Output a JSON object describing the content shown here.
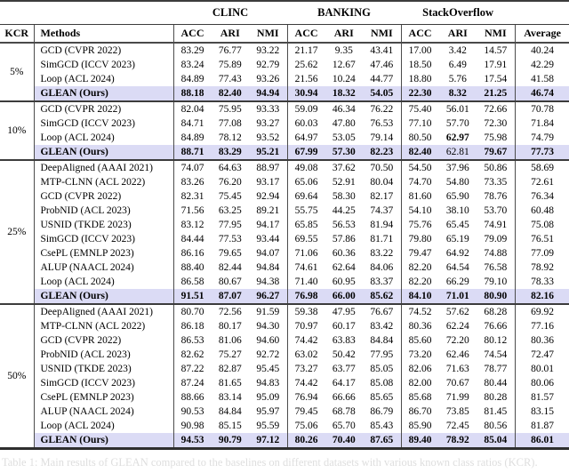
{
  "table": {
    "group_headers": [
      {
        "label": "CLINC"
      },
      {
        "label": "BANKING"
      },
      {
        "label": "StackOverflow"
      }
    ],
    "column_headers": {
      "kcr": "KCR",
      "methods": "Methods",
      "metrics": [
        "ACC",
        "ARI",
        "NMI",
        "ACC",
        "ARI",
        "NMI",
        "ACC",
        "ARI",
        "NMI"
      ],
      "average": "Average"
    },
    "highlight_color": "#dbdbf5",
    "blocks": [
      {
        "kcr": "5%",
        "rows": [
          {
            "method": "GCD (CVPR 2022)",
            "values": [
              "83.29",
              "76.77",
              "93.22",
              "21.17",
              "9.35",
              "43.41",
              "17.00",
              "3.42",
              "14.57",
              "40.24"
            ]
          },
          {
            "method": "SimGCD (ICCV 2023)",
            "values": [
              "83.24",
              "75.89",
              "92.79",
              "25.62",
              "12.67",
              "47.46",
              "18.50",
              "6.49",
              "17.91",
              "42.29"
            ]
          },
          {
            "method": "Loop (ACL 2024)",
            "values": [
              "84.89",
              "77.43",
              "93.26",
              "21.56",
              "10.24",
              "44.77",
              "18.80",
              "5.76",
              "17.54",
              "41.58"
            ]
          },
          {
            "method": "GLEAN (Ours)",
            "values": [
              "88.18",
              "82.40",
              "94.94",
              "30.94",
              "18.32",
              "54.05",
              "22.30",
              "8.32",
              "21.25",
              "46.74"
            ],
            "bold": true,
            "highlight": true
          }
        ]
      },
      {
        "kcr": "10%",
        "rows": [
          {
            "method": "GCD (CVPR 2022)",
            "values": [
              "82.04",
              "75.95",
              "93.33",
              "59.09",
              "46.34",
              "76.22",
              "75.40",
              "56.01",
              "72.66",
              "70.78"
            ]
          },
          {
            "method": "SimGCD (ICCV 2023)",
            "values": [
              "84.71",
              "77.08",
              "93.27",
              "60.03",
              "47.80",
              "76.53",
              "77.10",
              "57.70",
              "72.30",
              "71.84"
            ]
          },
          {
            "method": "Loop (ACL 2024)",
            "values": [
              "84.89",
              "78.12",
              "93.52",
              "64.97",
              "53.05",
              "79.14",
              "80.50",
              "62.97",
              "75.98",
              "74.79"
            ],
            "bold_cells": [
              7
            ]
          },
          {
            "method": "GLEAN (Ours)",
            "values": [
              "88.71",
              "83.29",
              "95.21",
              "67.99",
              "57.30",
              "82.23",
              "82.40",
              "62.81",
              "79.67",
              "77.73"
            ],
            "bold": true,
            "highlight": true,
            "regular_cells": [
              7
            ]
          }
        ]
      },
      {
        "kcr": "25%",
        "rows": [
          {
            "method": "DeepAligned (AAAI 2021)",
            "values": [
              "74.07",
              "64.63",
              "88.97",
              "49.08",
              "37.62",
              "70.50",
              "54.50",
              "37.96",
              "50.86",
              "58.69"
            ]
          },
          {
            "method": "MTP-CLNN (ACL 2022)",
            "values": [
              "83.26",
              "76.20",
              "93.17",
              "65.06",
              "52.91",
              "80.04",
              "74.70",
              "54.80",
              "73.35",
              "72.61"
            ]
          },
          {
            "method": "GCD (CVPR 2022)",
            "values": [
              "82.31",
              "75.45",
              "92.94",
              "69.64",
              "58.30",
              "82.17",
              "81.60",
              "65.90",
              "78.76",
              "76.34"
            ]
          },
          {
            "method": "ProbNID (ACL 2023)",
            "values": [
              "71.56",
              "63.25",
              "89.21",
              "55.75",
              "44.25",
              "74.37",
              "54.10",
              "38.10",
              "53.70",
              "60.48"
            ]
          },
          {
            "method": "USNID (TKDE 2023)",
            "values": [
              "83.12",
              "77.95",
              "94.17",
              "65.85",
              "56.53",
              "81.94",
              "75.76",
              "65.45",
              "74.91",
              "75.08"
            ]
          },
          {
            "method": "SimGCD (ICCV 2023)",
            "values": [
              "84.44",
              "77.53",
              "93.44",
              "69.55",
              "57.86",
              "81.71",
              "79.80",
              "65.19",
              "79.09",
              "76.51"
            ]
          },
          {
            "method": "CsePL (EMNLP 2023)",
            "values": [
              "86.16",
              "79.65",
              "94.07",
              "71.06",
              "60.36",
              "83.22",
              "79.47",
              "64.92",
              "74.88",
              "77.09"
            ]
          },
          {
            "method": "ALUP (NAACL 2024)",
            "values": [
              "88.40",
              "82.44",
              "94.84",
              "74.61",
              "62.64",
              "84.06",
              "82.20",
              "64.54",
              "76.58",
              "78.92"
            ]
          },
          {
            "method": "Loop (ACL 2024)",
            "values": [
              "86.58",
              "80.67",
              "94.38",
              "71.40",
              "60.95",
              "83.37",
              "82.20",
              "66.29",
              "79.10",
              "78.33"
            ]
          },
          {
            "method": "GLEAN (Ours)",
            "values": [
              "91.51",
              "87.07",
              "96.27",
              "76.98",
              "66.00",
              "85.62",
              "84.10",
              "71.01",
              "80.90",
              "82.16"
            ],
            "bold": true,
            "highlight": true
          }
        ]
      },
      {
        "kcr": "50%",
        "rows": [
          {
            "method": "DeepAligned (AAAI 2021)",
            "values": [
              "80.70",
              "72.56",
              "91.59",
              "59.38",
              "47.95",
              "76.67",
              "74.52",
              "57.62",
              "68.28",
              "69.92"
            ]
          },
          {
            "method": "MTP-CLNN (ACL 2022)",
            "values": [
              "86.18",
              "80.17",
              "94.30",
              "70.97",
              "60.17",
              "83.42",
              "80.36",
              "62.24",
              "76.66",
              "77.16"
            ]
          },
          {
            "method": "GCD (CVPR 2022)",
            "values": [
              "86.53",
              "81.06",
              "94.60",
              "74.42",
              "63.83",
              "84.84",
              "85.60",
              "72.20",
              "80.12",
              "80.36"
            ]
          },
          {
            "method": "ProbNID (ACL 2023)",
            "values": [
              "82.62",
              "75.27",
              "92.72",
              "63.02",
              "50.42",
              "77.95",
              "73.20",
              "62.46",
              "74.54",
              "72.47"
            ]
          },
          {
            "method": "USNID (TKDE 2023)",
            "values": [
              "87.22",
              "82.87",
              "95.45",
              "73.27",
              "63.77",
              "85.05",
              "82.06",
              "71.63",
              "78.77",
              "80.01"
            ]
          },
          {
            "method": "SimGCD (ICCV 2023)",
            "values": [
              "87.24",
              "81.65",
              "94.83",
              "74.42",
              "64.17",
              "85.08",
              "82.00",
              "70.67",
              "80.44",
              "80.06"
            ]
          },
          {
            "method": "CsePL (EMNLP 2023)",
            "values": [
              "88.66",
              "83.14",
              "95.09",
              "76.94",
              "66.66",
              "85.65",
              "85.68",
              "71.99",
              "80.28",
              "81.57"
            ]
          },
          {
            "method": "ALUP (NAACL 2024)",
            "values": [
              "90.53",
              "84.84",
              "95.97",
              "79.45",
              "68.78",
              "86.79",
              "86.70",
              "73.85",
              "81.45",
              "83.15"
            ]
          },
          {
            "method": "Loop (ACL 2024)",
            "values": [
              "90.98",
              "85.15",
              "95.59",
              "75.06",
              "65.70",
              "85.43",
              "85.90",
              "72.45",
              "80.56",
              "81.87"
            ]
          },
          {
            "method": "GLEAN (Ours)",
            "values": [
              "94.53",
              "90.79",
              "97.12",
              "80.26",
              "70.40",
              "87.65",
              "89.40",
              "78.92",
              "85.04",
              "86.01"
            ],
            "bold": true,
            "highlight": true
          }
        ]
      }
    ]
  },
  "caption": {
    "text": "Table 1: Main results of GLEAN compared to the baselines on different datasets with various known class ratios (KCR)."
  }
}
